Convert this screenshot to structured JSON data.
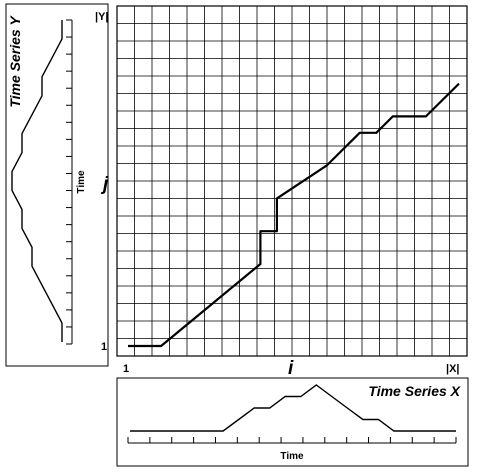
{
  "main_grid": {
    "columns": 20,
    "rows": 20,
    "x_axis": {
      "start_label": "1",
      "end_label": "|X|",
      "index_label": "i"
    },
    "y_axis": {
      "start_label": "1",
      "end_label": "|Y|",
      "index_label": "j"
    },
    "warping_path": [
      [
        0,
        0
      ],
      [
        2,
        0
      ],
      [
        8,
        5
      ],
      [
        8,
        7
      ],
      [
        9,
        7
      ],
      [
        9,
        9
      ],
      [
        12,
        11
      ],
      [
        14,
        13
      ],
      [
        15,
        13
      ],
      [
        16,
        14
      ],
      [
        17,
        14
      ],
      [
        18,
        14
      ],
      [
        20,
        16
      ]
    ]
  },
  "series_x": {
    "title": "Time Series X",
    "axis_label": "Time",
    "values": [
      0,
      0,
      0,
      0,
      0,
      0,
      0,
      1,
      2,
      2,
      3,
      3,
      4,
      3,
      2,
      1,
      1,
      0,
      0,
      0,
      0,
      0
    ],
    "ticks": 16
  },
  "series_y": {
    "title": "Time Series Y",
    "axis_label": "Time",
    "values": [
      0,
      0,
      1,
      2,
      3,
      3,
      4,
      4,
      5,
      5,
      4,
      4,
      3,
      2,
      2,
      1,
      0,
      0
    ],
    "ticks": 20
  }
}
